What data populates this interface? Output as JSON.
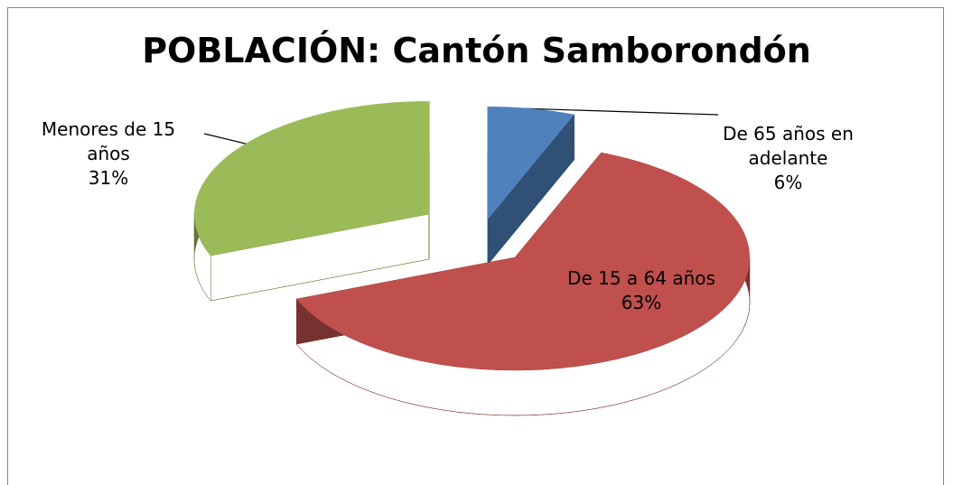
{
  "chart_data": {
    "type": "pie",
    "title": "POBLACIÓN: Cantón Samborondón",
    "categories": [
      "De 65 años en adelante",
      "De 15 a 64 años",
      "Menores de 15 años"
    ],
    "values": [
      6,
      63,
      31
    ],
    "value_labels": [
      "6%",
      "63%",
      "31%"
    ],
    "colors": [
      "#4f81bd",
      "#c0504d",
      "#9bbb59"
    ]
  }
}
